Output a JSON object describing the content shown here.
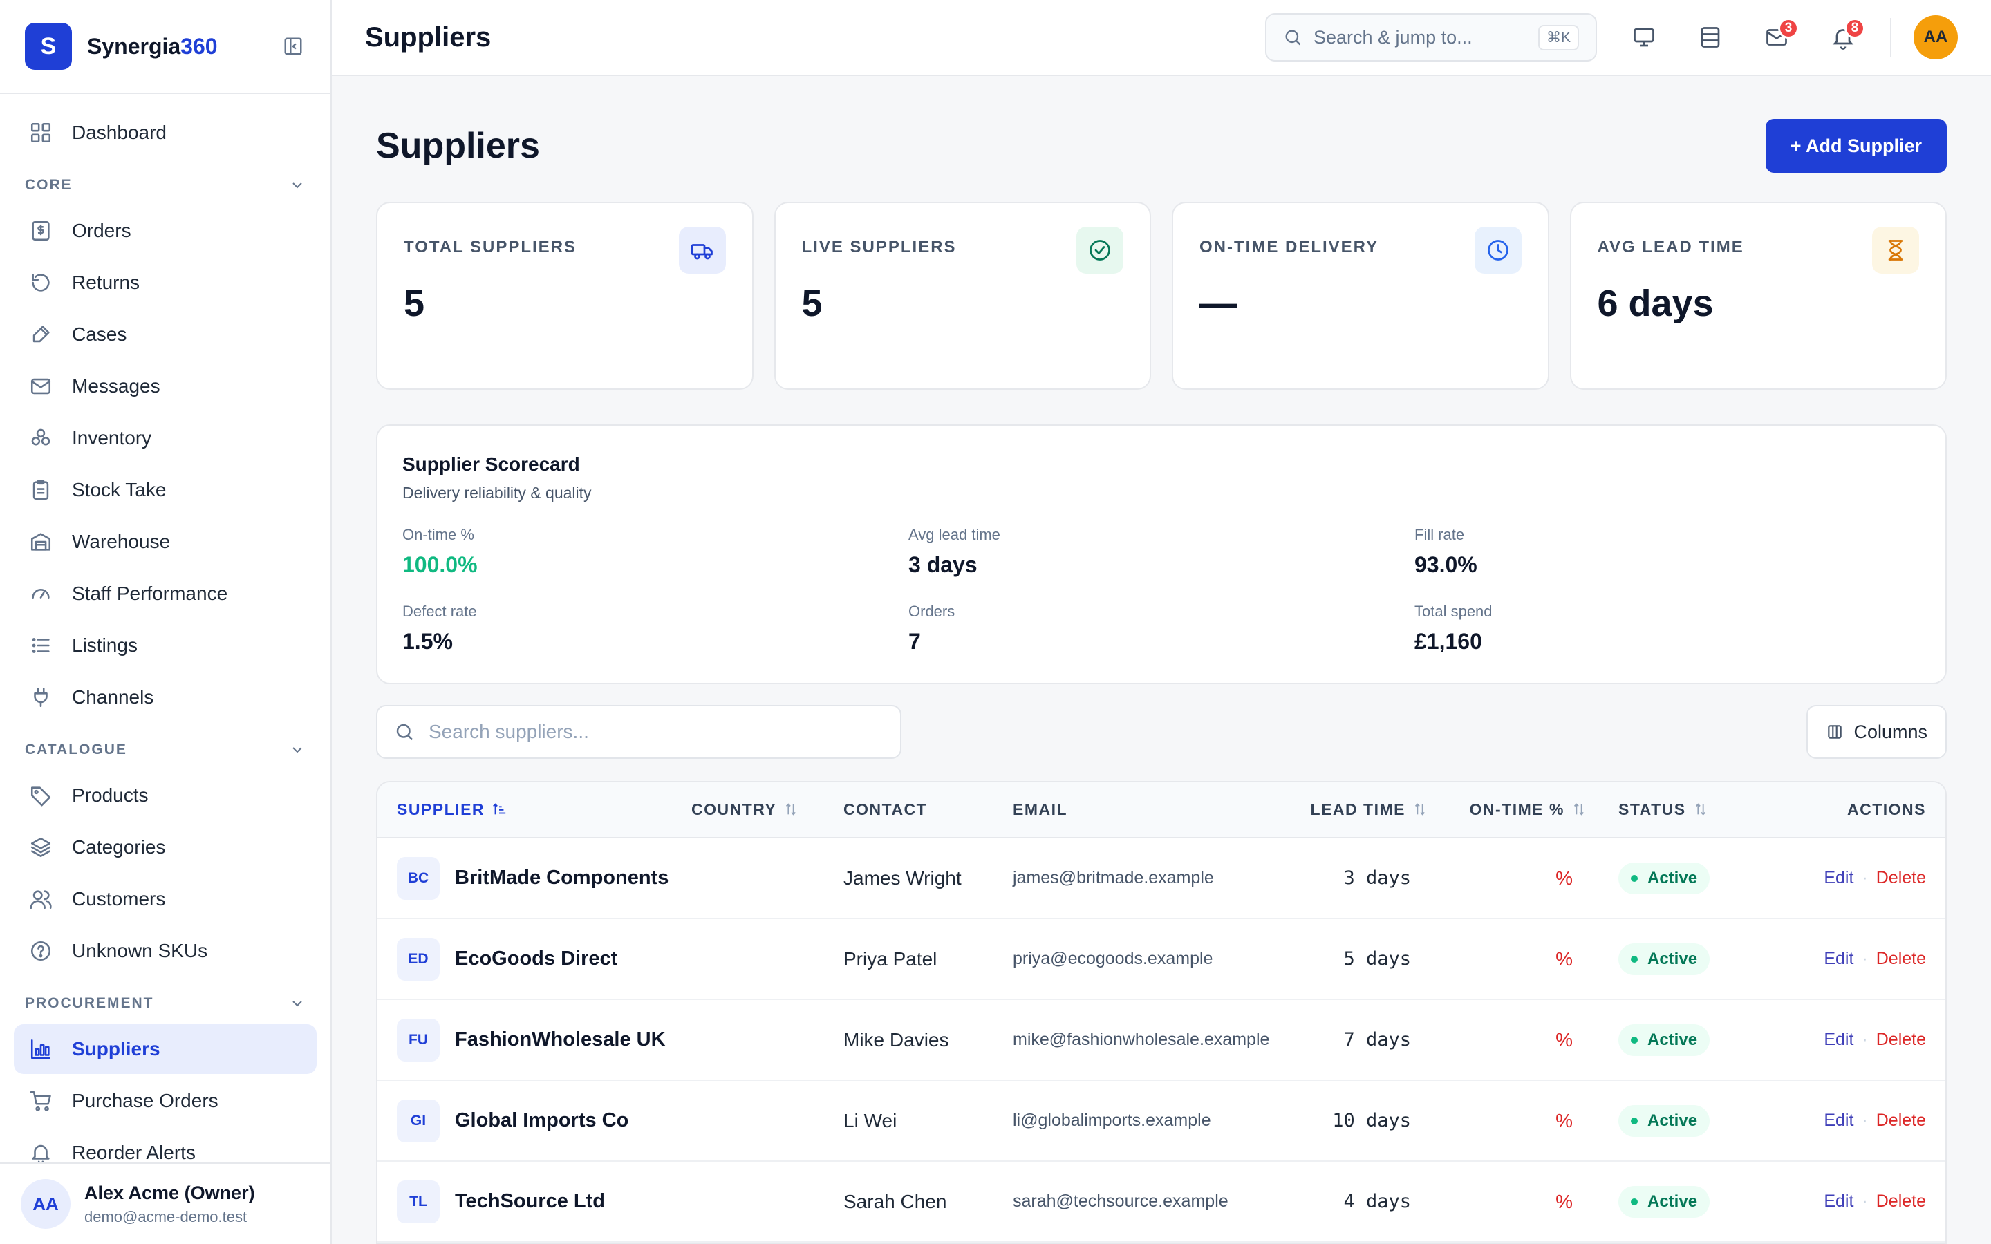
{
  "brand": {
    "logo_letter": "S",
    "name_main": "Synergia",
    "name_accent": "360"
  },
  "sidebar": {
    "top_items": [
      {
        "label": "Dashboard",
        "icon": "dashboard-icon"
      }
    ],
    "sections": [
      {
        "title": "CORE",
        "items": [
          {
            "label": "Orders",
            "icon": "orders-icon"
          },
          {
            "label": "Returns",
            "icon": "returns-icon"
          },
          {
            "label": "Cases",
            "icon": "cases-icon"
          },
          {
            "label": "Messages",
            "icon": "mail-icon"
          },
          {
            "label": "Inventory",
            "icon": "inventory-icon"
          },
          {
            "label": "Stock Take",
            "icon": "clipboard-icon"
          },
          {
            "label": "Warehouse",
            "icon": "warehouse-icon"
          },
          {
            "label": "Staff Performance",
            "icon": "gauge-icon"
          },
          {
            "label": "Listings",
            "icon": "list-icon"
          },
          {
            "label": "Channels",
            "icon": "plug-icon"
          }
        ]
      },
      {
        "title": "CATALOGUE",
        "items": [
          {
            "label": "Products",
            "icon": "tag-icon"
          },
          {
            "label": "Categories",
            "icon": "layers-icon"
          },
          {
            "label": "Customers",
            "icon": "users-icon"
          },
          {
            "label": "Unknown SKUs",
            "icon": "help-circle-icon"
          }
        ]
      },
      {
        "title": "PROCUREMENT",
        "items": [
          {
            "label": "Suppliers",
            "icon": "suppliers-icon",
            "active": true
          },
          {
            "label": "Purchase Orders",
            "icon": "cart-icon"
          },
          {
            "label": "Reorder Alerts",
            "icon": "bell-icon"
          }
        ]
      }
    ],
    "user": {
      "initials": "AA",
      "name": "Alex Acme (Owner)",
      "email": "demo@acme-demo.test"
    }
  },
  "topbar": {
    "title": "Suppliers",
    "search_placeholder": "Search & jump to...",
    "search_shortcut": "⌘K",
    "mail_badge": "3",
    "notif_badge": "8",
    "avatar_initials": "AA"
  },
  "page": {
    "title": "Suppliers",
    "add_button": "+ Add Supplier"
  },
  "stats": [
    {
      "label": "TOTAL SUPPLIERS",
      "value": "5",
      "icon": "truck-icon",
      "icon_bg": "#e8edfd",
      "icon_color": "#1f3fd6"
    },
    {
      "label": "LIVE SUPPLIERS",
      "value": "5",
      "icon": "check-circle-icon",
      "icon_bg": "#e7f8ef",
      "icon_color": "#047857"
    },
    {
      "label": "ON-TIME DELIVERY",
      "value": "—",
      "icon": "clock-icon",
      "icon_bg": "#e8f1fd",
      "icon_color": "#2563eb"
    },
    {
      "label": "AVG LEAD TIME",
      "value": "6 days",
      "icon": "hourglass-icon",
      "icon_bg": "#fdf6e3",
      "icon_color": "#d97706"
    }
  ],
  "scorecard": {
    "title": "Supplier Scorecard",
    "subtitle": "Delivery reliability & quality",
    "metrics": [
      {
        "label": "On-time %",
        "value": "100.0%",
        "highlight": true
      },
      {
        "label": "Avg lead time",
        "value": "3 days"
      },
      {
        "label": "Fill rate",
        "value": "93.0%"
      },
      {
        "label": "Defect rate",
        "value": "1.5%"
      },
      {
        "label": "Orders",
        "value": "7"
      },
      {
        "label": "Total spend",
        "value": "£1,160"
      }
    ]
  },
  "table": {
    "search_placeholder": "Search suppliers...",
    "columns_button": "Columns",
    "headers": {
      "supplier": "SUPPLIER",
      "country": "COUNTRY",
      "contact": "CONTACT",
      "email": "EMAIL",
      "lead_time": "LEAD TIME",
      "on_time": "ON-TIME %",
      "status": "STATUS",
      "actions": "ACTIONS"
    },
    "rows": [
      {
        "initials": "BC",
        "name": "BritMade Components",
        "country": "",
        "contact": "James Wright",
        "email": "james@britmade.example",
        "lead": "3",
        "lead_unit": "days",
        "on_time": "%",
        "status": "Active",
        "edit": "Edit",
        "delete": "Delete"
      },
      {
        "initials": "ED",
        "name": "EcoGoods Direct",
        "country": "",
        "contact": "Priya Patel",
        "email": "priya@ecogoods.example",
        "lead": "5",
        "lead_unit": "days",
        "on_time": "%",
        "status": "Active",
        "edit": "Edit",
        "delete": "Delete"
      },
      {
        "initials": "FU",
        "name": "FashionWholesale UK",
        "country": "",
        "contact": "Mike Davies",
        "email": "mike@fashionwholesale.example",
        "lead": "7",
        "lead_unit": "days",
        "on_time": "%",
        "status": "Active",
        "edit": "Edit",
        "delete": "Delete"
      },
      {
        "initials": "GI",
        "name": "Global Imports Co",
        "country": "",
        "contact": "Li Wei",
        "email": "li@globalimports.example",
        "lead": "10",
        "lead_unit": "days",
        "on_time": "%",
        "status": "Active",
        "edit": "Edit",
        "delete": "Delete"
      },
      {
        "initials": "TL",
        "name": "TechSource Ltd",
        "country": "",
        "contact": "Sarah Chen",
        "email": "sarah@techsource.example",
        "lead": "4",
        "lead_unit": "days",
        "on_time": "%",
        "status": "Active",
        "edit": "Edit",
        "delete": "Delete"
      }
    ]
  }
}
